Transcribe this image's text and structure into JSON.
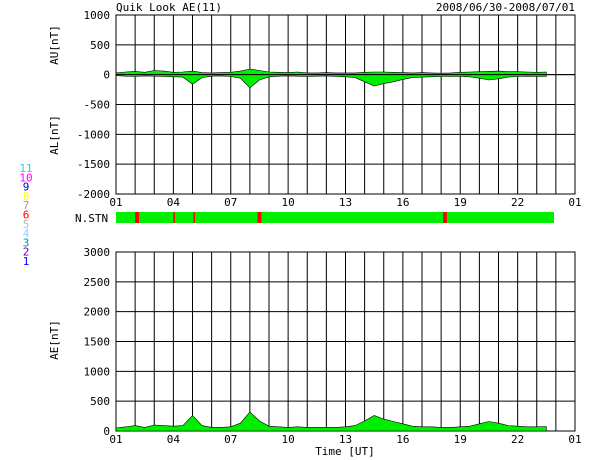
{
  "header": {
    "title": "Quik Look AE(11)",
    "date_range": "2008/06/30-2008/07/01"
  },
  "station_legend": [
    {
      "label": "11",
      "color": "#33cccc"
    },
    {
      "label": "10",
      "color": "#ff00ff"
    },
    {
      "label": "9",
      "color": "#0000cc"
    },
    {
      "label": "8",
      "color": "#ffff00"
    },
    {
      "label": "7",
      "color": "#a0a0a0"
    },
    {
      "label": "6",
      "color": "#ff0000"
    },
    {
      "label": "5",
      "color": "#bbbbbb"
    },
    {
      "label": "4",
      "color": "#99ccff"
    },
    {
      "label": "3",
      "color": "#009999"
    },
    {
      "label": "2",
      "color": "#7700aa"
    },
    {
      "label": "1",
      "color": "#0000ff"
    }
  ],
  "chart_data": [
    {
      "type": "area",
      "id": "au_al",
      "ylabel_top": "AU[nT]",
      "ylabel_bottom": "AL[nT]",
      "ylim": [
        -2000,
        1000
      ],
      "yticks": [
        1000,
        500,
        0,
        -500,
        -1000,
        -1500,
        -2000
      ],
      "xlim": [
        0,
        24
      ],
      "xtick_labels": [
        "01",
        "04",
        "07",
        "10",
        "13",
        "16",
        "19",
        "22",
        "01"
      ],
      "grid": true,
      "fill_color": "#00ee00",
      "x": [
        0,
        0.5,
        1,
        1.5,
        2,
        2.5,
        3,
        3.5,
        4,
        4.5,
        5,
        5.5,
        6,
        6.5,
        7,
        7.5,
        8,
        8.5,
        9,
        9.5,
        10,
        10.5,
        11,
        11.5,
        12,
        12.5,
        13,
        13.5,
        14,
        14.5,
        15,
        15.5,
        16,
        16.5,
        17,
        17.5,
        18,
        18.5,
        19,
        19.5,
        20,
        20.5,
        21,
        21.5,
        22,
        22.5
      ],
      "series": [
        {
          "values_au": [
            30,
            45,
            55,
            40,
            70,
            60,
            40,
            45,
            60,
            35,
            30,
            35,
            40,
            60,
            95,
            70,
            45,
            40,
            35,
            45,
            30,
            30,
            35,
            30,
            30,
            30,
            40,
            45,
            45,
            40,
            35,
            30,
            35,
            30,
            25,
            30,
            40,
            45,
            50,
            55,
            60,
            50,
            50,
            45,
            40,
            45
          ]
        },
        {
          "values_al": [
            -15,
            -25,
            -30,
            -20,
            -25,
            -30,
            -35,
            -40,
            -160,
            -50,
            -25,
            -20,
            -30,
            -60,
            -220,
            -90,
            -35,
            -25,
            -20,
            -25,
            -30,
            -25,
            -20,
            -30,
            -35,
            -50,
            -120,
            -190,
            -150,
            -120,
            -80,
            -50,
            -40,
            -35,
            -30,
            -30,
            -30,
            -35,
            -60,
            -90,
            -70,
            -40,
            -30,
            -25,
            -30,
            -30
          ]
        }
      ]
    },
    {
      "type": "bar",
      "id": "station_count",
      "label": "N.STN",
      "color_full": "#00ee00",
      "color_drop": "#ff0000",
      "drop_intervals": [
        [
          1.0,
          1.2
        ],
        [
          3.0,
          3.08
        ],
        [
          4.05,
          4.12
        ],
        [
          7.4,
          7.6
        ],
        [
          17.1,
          17.3
        ]
      ],
      "xlim": [
        0,
        24
      ],
      "data_end": 22.9
    },
    {
      "type": "area",
      "id": "ae",
      "ylabel": "AE[nT]",
      "xlabel": "Time [UT]",
      "ylim": [
        0,
        3000
      ],
      "yticks": [
        3000,
        2500,
        2000,
        1500,
        1000,
        500,
        0
      ],
      "xlim": [
        0,
        24
      ],
      "xtick_labels": [
        "01",
        "04",
        "07",
        "10",
        "13",
        "16",
        "19",
        "22",
        "01"
      ],
      "grid": true,
      "fill_color": "#00ee00",
      "x": [
        0,
        0.5,
        1,
        1.5,
        2,
        2.5,
        3,
        3.5,
        4,
        4.5,
        5,
        5.5,
        6,
        6.5,
        7,
        7.5,
        8,
        8.5,
        9,
        9.5,
        10,
        10.5,
        11,
        11.5,
        12,
        12.5,
        13,
        13.5,
        14,
        14.5,
        15,
        15.5,
        16,
        16.5,
        17,
        17.5,
        18,
        18.5,
        19,
        19.5,
        20,
        20.5,
        21,
        21.5,
        22,
        22.5
      ],
      "values": [
        50,
        70,
        90,
        60,
        100,
        90,
        80,
        90,
        260,
        90,
        60,
        60,
        70,
        130,
        320,
        170,
        80,
        70,
        60,
        70,
        60,
        60,
        60,
        60,
        70,
        90,
        170,
        260,
        200,
        160,
        120,
        80,
        70,
        70,
        60,
        60,
        70,
        80,
        120,
        160,
        130,
        90,
        80,
        70,
        70,
        75
      ]
    }
  ]
}
